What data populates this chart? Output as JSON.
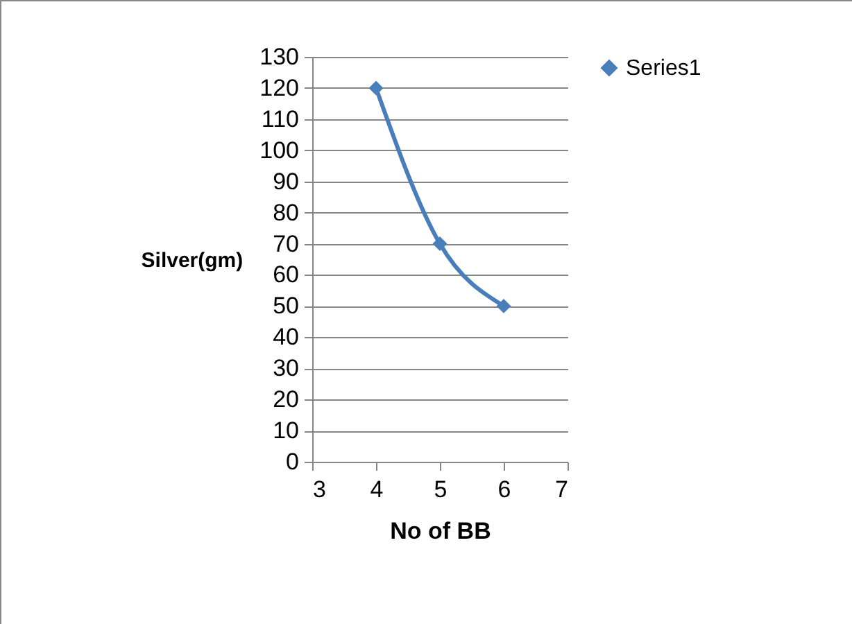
{
  "chart_data": {
    "type": "line",
    "xlabel": "No of BB",
    "ylabel": "Silver(gm)",
    "x": [
      4,
      5,
      6
    ],
    "series": [
      {
        "name": "Series1",
        "color": "#4a7ebb",
        "values": [
          120,
          70,
          50
        ]
      }
    ],
    "xlim": [
      3,
      7
    ],
    "xticks": [
      3,
      4,
      5,
      6,
      7
    ],
    "ylim": [
      0,
      130
    ],
    "yticks": [
      0,
      10,
      20,
      30,
      40,
      50,
      60,
      70,
      80,
      90,
      100,
      110,
      120,
      130
    ],
    "grid": "y",
    "legend": "right",
    "marker": "diamond",
    "line_style": "solid"
  }
}
